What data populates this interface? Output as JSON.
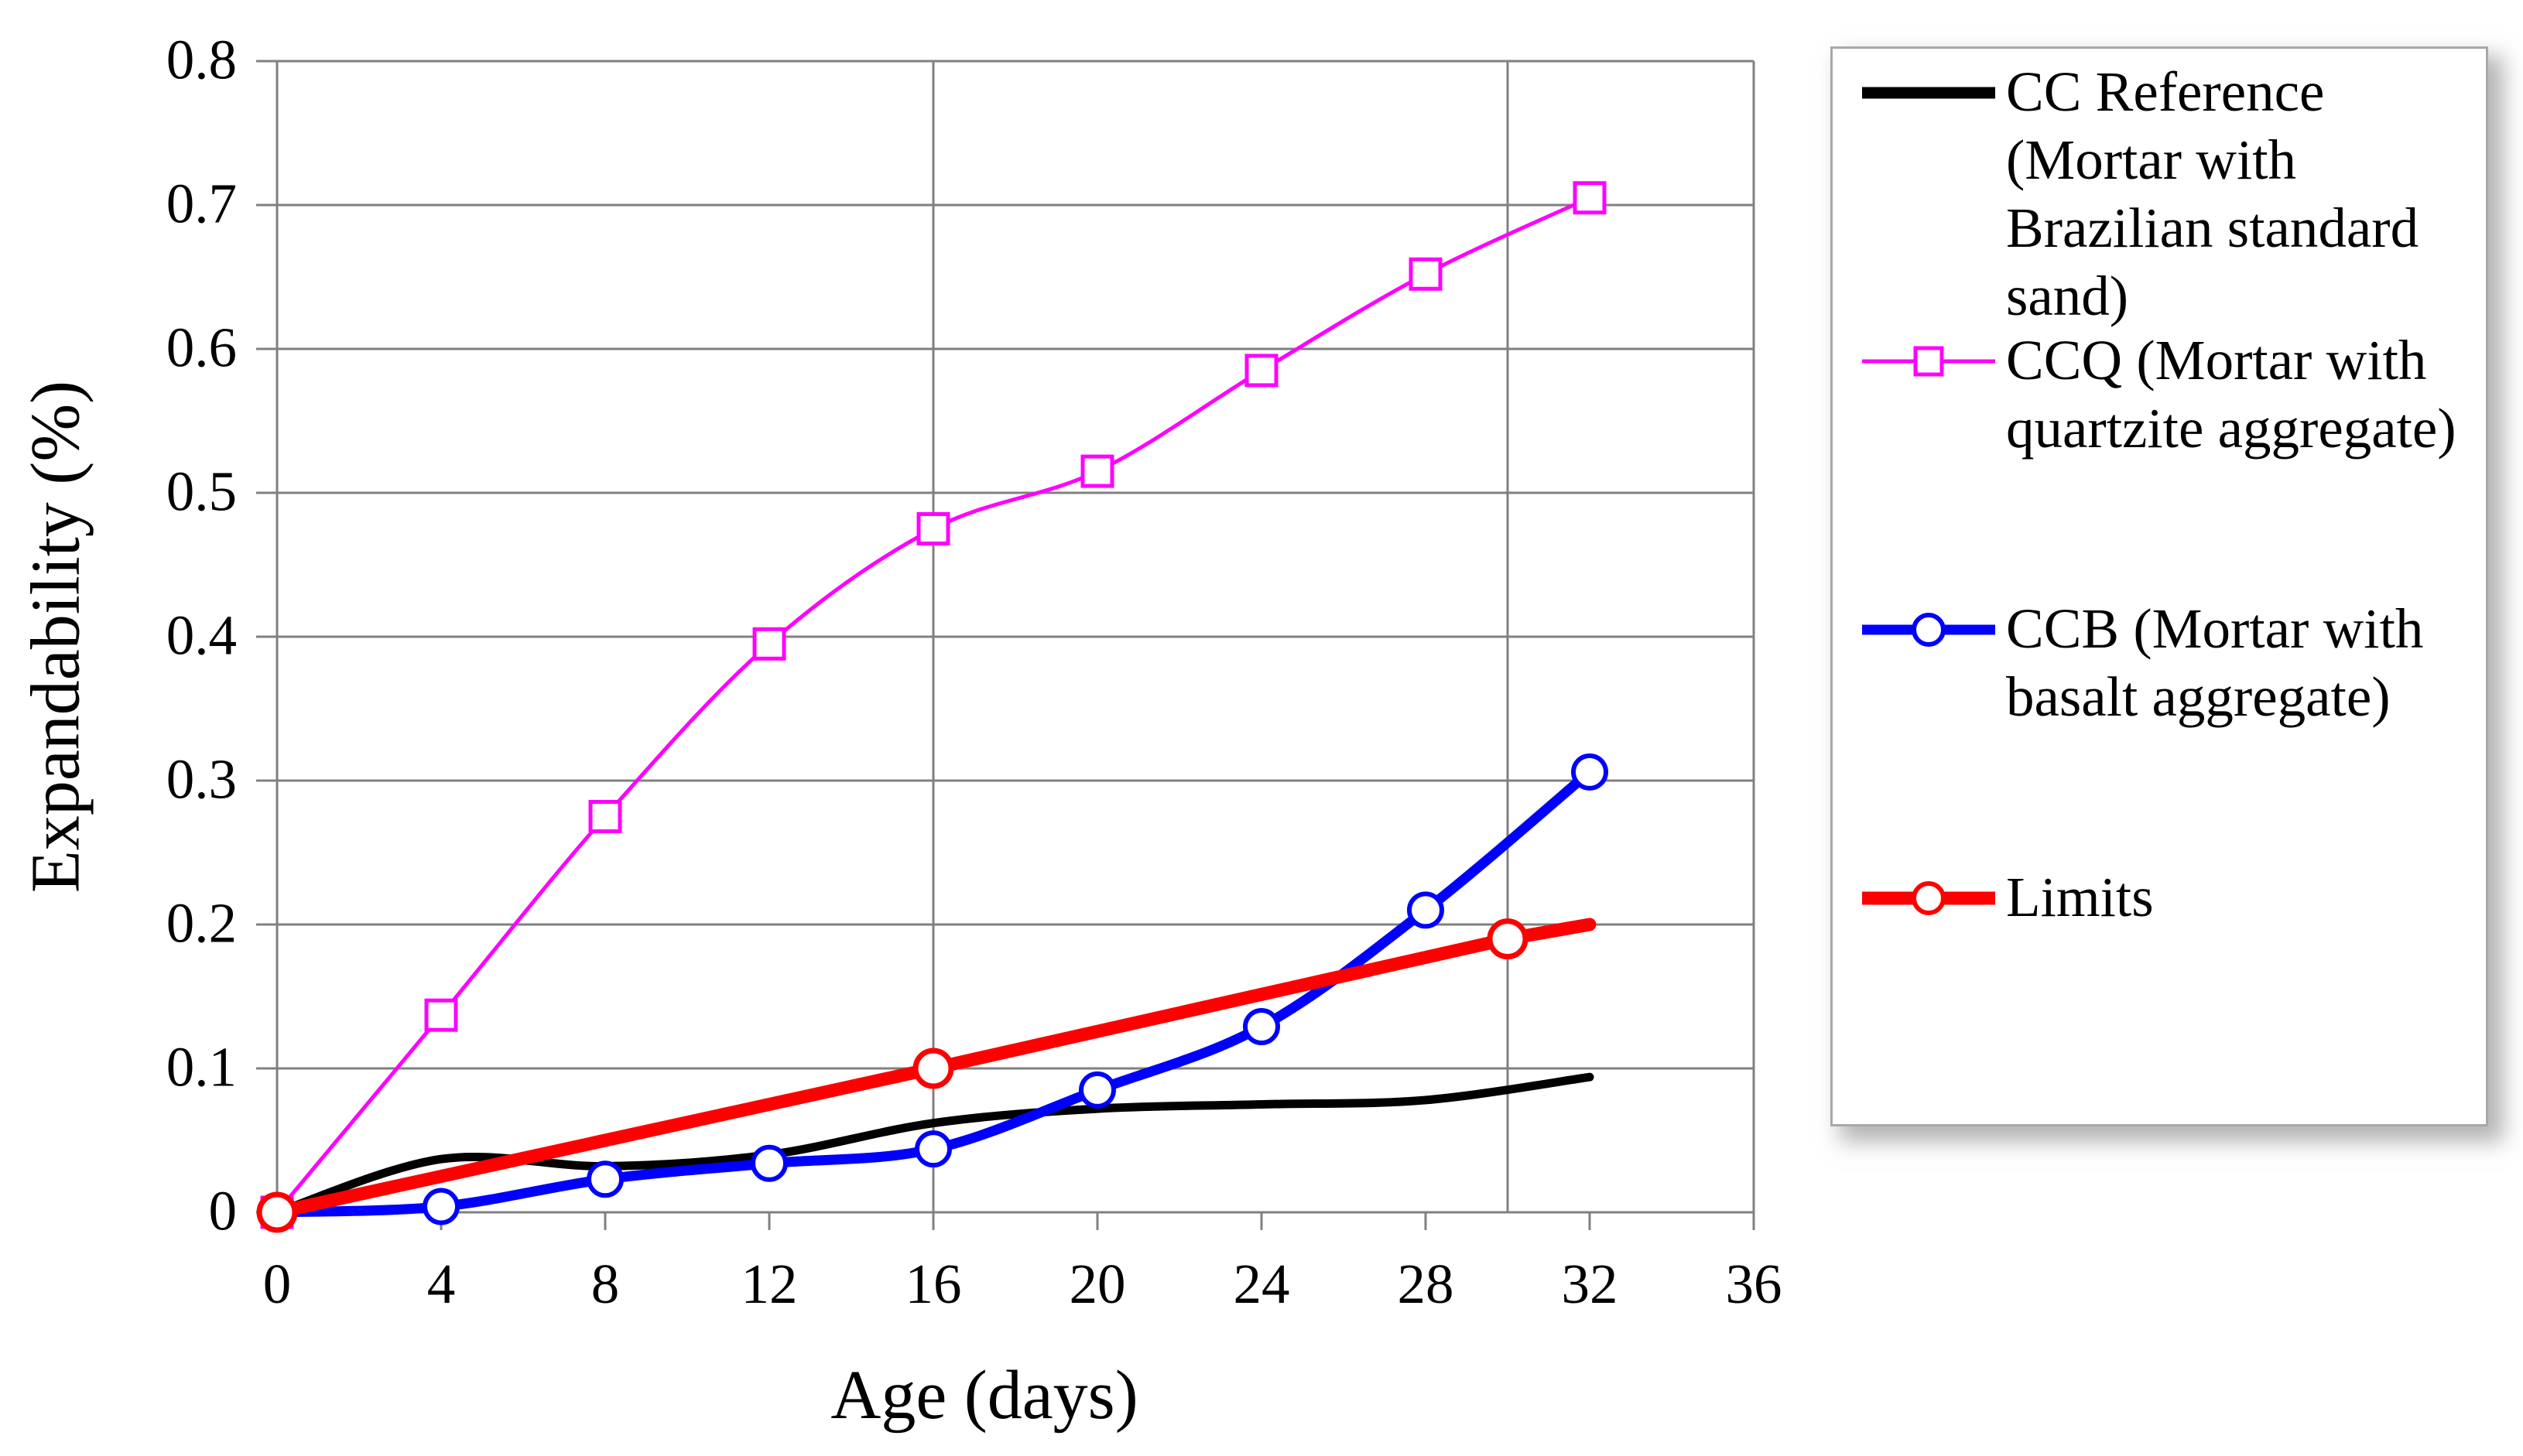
{
  "chart_data": {
    "type": "line",
    "xlabel": "Age (days)",
    "ylabel": "Expandability (%)",
    "xlim": [
      0,
      36
    ],
    "ylim": [
      0,
      0.8
    ],
    "x_ticks": [
      0,
      4,
      8,
      12,
      16,
      20,
      24,
      28,
      32,
      36
    ],
    "y_ticks": [
      0,
      0.1,
      0.2,
      0.3,
      0.4,
      0.5,
      0.6,
      0.7,
      0.8
    ],
    "reference_vlines_x": [
      16,
      30
    ],
    "grid": true,
    "legend_position": "right",
    "axis_color": "#808080",
    "x": [
      0,
      4,
      8,
      12,
      16,
      20,
      24,
      28,
      32
    ],
    "series": [
      {
        "id": "cc-reference",
        "name": "CC Reference (Mortar with Brazilian standard sand)",
        "legend_lines": [
          "CC Reference",
          "(Mortar with",
          "Brazilian standard",
          "sand)"
        ],
        "color": "#000000",
        "line_width": 11,
        "marker": "none",
        "smooth": true,
        "values": [
          0,
          0.037,
          0.032,
          0.04,
          0.062,
          0.072,
          0.075,
          0.078,
          0.094
        ]
      },
      {
        "id": "ccq",
        "name": "CCQ (Mortar with quartzite aggregate)",
        "legend_lines": [
          "CCQ (Mortar with",
          "quartzite aggregate)"
        ],
        "color": "#FF00FF",
        "line_width": 5,
        "marker": "square",
        "marker_size": 38,
        "marker_stroke": 5,
        "smooth": true,
        "values": [
          0,
          0.137,
          0.275,
          0.395,
          0.475,
          0.515,
          0.585,
          0.652,
          0.705
        ]
      },
      {
        "id": "ccb",
        "name": "CCB (Mortar with basalt aggregate)",
        "legend_lines": [
          "CCB (Mortar with",
          "basalt aggregate)"
        ],
        "color": "#0000FF",
        "line_width": 13,
        "marker": "circle",
        "marker_size": 42,
        "marker_stroke": 6,
        "smooth": true,
        "values": [
          0,
          0.004,
          0.023,
          0.034,
          0.044,
          0.085,
          0.129,
          0.21,
          0.306
        ]
      },
      {
        "id": "limits",
        "name": "Limits",
        "legend_lines": [
          "Limits"
        ],
        "color": "#FF0000",
        "line_width": 17,
        "marker": "circle",
        "marker_size": 46,
        "marker_stroke": 7,
        "smooth": false,
        "x": [
          0,
          16,
          30,
          32
        ],
        "values": [
          0,
          0.1,
          0.19,
          0.2
        ],
        "marker_x": [
          0,
          16,
          30
        ]
      }
    ]
  }
}
